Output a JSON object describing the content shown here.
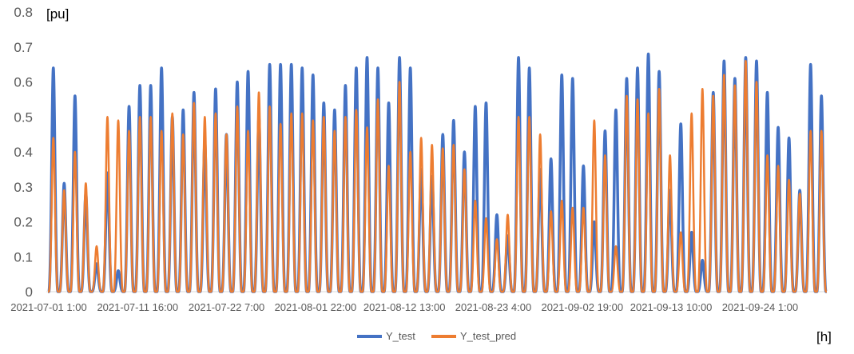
{
  "chart_data": {
    "type": "line",
    "title": "",
    "ylabel": "[pu]",
    "xlabel": "[h]",
    "ylim": [
      0,
      0.8
    ],
    "yticks": [
      "0",
      "0.1",
      "0.2",
      "0.3",
      "0.4",
      "0.5",
      "0.6",
      "0.7",
      "0.8"
    ],
    "xticks": [
      "2021-07-01 1:00",
      "2021-07-11 16:00",
      "2021-07-22 7:00",
      "2021-08-01 22:00",
      "2021-08-12 13:00",
      "2021-08-23 4:00",
      "2021-09-02 19:00",
      "2021-09-13 10:00",
      "2021-09-24 1:00"
    ],
    "grid": false,
    "legend_position": "bottom",
    "series": [
      {
        "name": "Y_test",
        "color": "#4472C4",
        "daily_peaks": [
          0.64,
          0.31,
          0.56,
          0.28,
          0.08,
          0.34,
          0.06,
          0.53,
          0.59,
          0.59,
          0.64,
          0.5,
          0.52,
          0.57,
          0.43,
          0.58,
          0.45,
          0.6,
          0.63,
          0.5,
          0.65,
          0.65,
          0.65,
          0.64,
          0.62,
          0.54,
          0.52,
          0.59,
          0.64,
          0.67,
          0.64,
          0.54,
          0.67,
          0.64,
          0.35,
          0.33,
          0.45,
          0.49,
          0.4,
          0.53,
          0.54,
          0.22,
          0.16,
          0.67,
          0.64,
          0.35,
          0.38,
          0.62,
          0.61,
          0.36,
          0.2,
          0.46,
          0.52,
          0.61,
          0.64,
          0.68,
          0.63,
          0.29,
          0.48,
          0.17,
          0.09,
          0.57,
          0.66,
          0.61,
          0.67,
          0.66,
          0.57,
          0.47,
          0.44,
          0.29,
          0.65,
          0.56
        ]
      },
      {
        "name": "Y_test_pred",
        "color": "#ED7D31",
        "daily_peaks": [
          0.44,
          0.29,
          0.4,
          0.31,
          0.13,
          0.5,
          0.49,
          0.46,
          0.5,
          0.5,
          0.46,
          0.51,
          0.45,
          0.54,
          0.5,
          0.51,
          0.45,
          0.53,
          0.46,
          0.57,
          0.53,
          0.48,
          0.51,
          0.51,
          0.49,
          0.5,
          0.46,
          0.5,
          0.52,
          0.47,
          0.55,
          0.36,
          0.6,
          0.4,
          0.44,
          0.42,
          0.41,
          0.42,
          0.35,
          0.26,
          0.21,
          0.15,
          0.22,
          0.5,
          0.5,
          0.45,
          0.23,
          0.26,
          0.24,
          0.24,
          0.49,
          0.39,
          0.13,
          0.56,
          0.55,
          0.51,
          0.58,
          0.39,
          0.17,
          0.51,
          0.58,
          0.56,
          0.62,
          0.59,
          0.66,
          0.6,
          0.39,
          0.36,
          0.32,
          0.28,
          0.46,
          0.46
        ]
      }
    ]
  }
}
